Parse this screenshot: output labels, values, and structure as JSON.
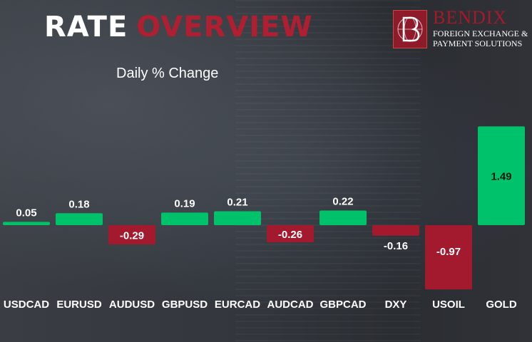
{
  "header": {
    "title_part1": "RATE",
    "title_part2": "OVERVIEW",
    "subtitle": "Daily % Change"
  },
  "logo": {
    "name": "BENDIX",
    "tagline_line1": "FOREIGN EXCHANGE &",
    "tagline_line2": "PAYMENT SOLUTIONS"
  },
  "colors": {
    "positive": "#00c26a",
    "negative": "#a3192e",
    "accent": "#b01e32"
  },
  "chart_data": {
    "type": "bar",
    "title": "Daily % Change",
    "categories": [
      "USDCAD",
      "EURUSD",
      "AUDUSD",
      "GBPUSD",
      "EURCAD",
      "AUDCAD",
      "GBPCAD",
      "DXY",
      "USOIL",
      "GOLD"
    ],
    "values": [
      0.05,
      0.18,
      -0.29,
      0.19,
      0.21,
      -0.26,
      0.22,
      -0.16,
      -0.97,
      1.49
    ],
    "labels": [
      "0.05",
      "0.18",
      "-0.29",
      "0.19",
      "0.21",
      "-0.26",
      "0.22",
      "-0.16",
      "-0.97",
      "1.49"
    ],
    "grid": false,
    "legend": "none"
  }
}
